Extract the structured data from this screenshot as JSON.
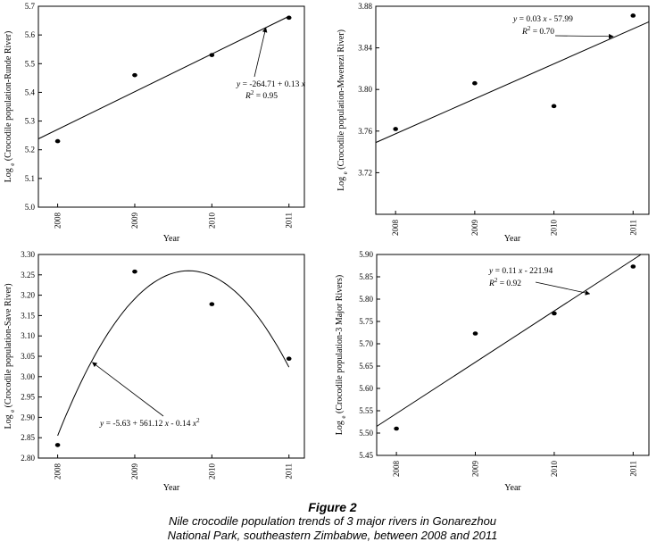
{
  "figure": {
    "title": "Figure 2",
    "subtitle_line1": "Nile crocodile population trends of 3 major rivers in Gonarezhou",
    "subtitle_line2": "National Park, southeastern Zimbabwe, between 2008 and 2011"
  },
  "chart_data": [
    {
      "type": "scatter",
      "panel": "top-left",
      "title": "",
      "xlabel": "Year",
      "ylabel": "Log e (Crocodile population-Runde River)",
      "x": [
        2008,
        2009,
        2010,
        2011
      ],
      "y": [
        5.23,
        5.46,
        5.53,
        5.66
      ],
      "xlim": [
        2007.75,
        2011.2
      ],
      "ylim": [
        5.0,
        5.7
      ],
      "yticks": [
        "5.0",
        "5.1",
        "5.2",
        "5.3",
        "5.4",
        "5.5",
        "5.6",
        "5.7"
      ],
      "xticks": [
        "2008",
        "2009",
        "2010",
        "2011"
      ],
      "fit": {
        "kind": "linear",
        "x": [
          2007.75,
          2011.0
        ],
        "y": [
          5.238,
          5.665
        ]
      },
      "annotation": {
        "equation": "y = -264.71 + 0.13 x",
        "r2": "R 2 = 0.95",
        "points_to": {
          "x": 2010.7,
          "y": 5.625
        }
      },
      "grid": false,
      "legend": "none"
    },
    {
      "type": "scatter",
      "panel": "top-right",
      "title": "",
      "xlabel": "Year",
      "ylabel": "Log e (Crocodile population-Mwenezi River)",
      "x": [
        2008,
        2009,
        2010,
        2011
      ],
      "y": [
        3.762,
        3.806,
        3.784,
        3.871
      ],
      "xlim": [
        2007.75,
        2011.2
      ],
      "ylim": [
        3.68,
        3.88
      ],
      "yticks": [
        "3.72",
        "3.76",
        "3.80",
        "3.84",
        "3.88"
      ],
      "xticks": [
        "2008",
        "2009",
        "2010",
        "2011"
      ],
      "fit": {
        "kind": "linear",
        "x": [
          2007.75,
          2011.2
        ],
        "y": [
          3.749,
          3.865
        ]
      },
      "annotation": {
        "equation": "y = 0.03 x - 57.99",
        "r2": "R 2 = 0.70",
        "points_to": {
          "x": 2010.75,
          "y": 3.851
        }
      },
      "grid": false,
      "legend": "none"
    },
    {
      "type": "scatter",
      "panel": "bottom-left",
      "title": "",
      "xlabel": "Year",
      "ylabel": "Log e (Crocodile population-Save River)",
      "x": [
        2008,
        2009,
        2010,
        2011
      ],
      "y": [
        2.832,
        3.258,
        3.178,
        3.044
      ],
      "xlim": [
        2007.75,
        2011.2
      ],
      "ylim": [
        2.8,
        3.3
      ],
      "yticks": [
        "2.80",
        "2.85",
        "2.90",
        "2.95",
        "3.00",
        "3.05",
        "3.10",
        "3.15",
        "3.20",
        "3.25",
        "3.30"
      ],
      "xticks": [
        "2008",
        "2009",
        "2010",
        "2011"
      ],
      "fit": {
        "kind": "quadratic",
        "peak_x": 2009.7,
        "peak_y": 3.26,
        "x_start": 2008.0,
        "y_start": 2.855,
        "x_end": 2011.0,
        "y_end": 3.02
      },
      "annotation": {
        "equation": "y = -5.63 + 561.12 x - 0.14 x 2",
        "points_to": {
          "x": 2008.45,
          "y": 3.035
        }
      },
      "grid": false,
      "legend": "none"
    },
    {
      "type": "scatter",
      "panel": "bottom-right",
      "title": "",
      "xlabel": "Year",
      "ylabel": "Log e (Crocodile population-3 Major Rivers)",
      "x": [
        2008,
        2009,
        2010,
        2011
      ],
      "y": [
        5.51,
        5.723,
        5.768,
        5.873
      ],
      "xlim": [
        2007.75,
        2011.2
      ],
      "ylim": [
        5.45,
        5.9
      ],
      "yticks": [
        "5.45",
        "5.50",
        "5.55",
        "5.60",
        "5.65",
        "5.70",
        "5.75",
        "5.80",
        "5.85",
        "5.90"
      ],
      "xticks": [
        "2008",
        "2009",
        "2010",
        "2011"
      ],
      "fit": {
        "kind": "linear",
        "x": [
          2007.75,
          2011.1
        ],
        "y": [
          5.515,
          5.9
        ]
      },
      "annotation": {
        "equation": "y = 0.11 x - 221.94",
        "r2": "R 2 = 0.92",
        "points_to": {
          "x": 2010.45,
          "y": 5.812
        }
      },
      "grid": false,
      "legend": "none"
    }
  ]
}
